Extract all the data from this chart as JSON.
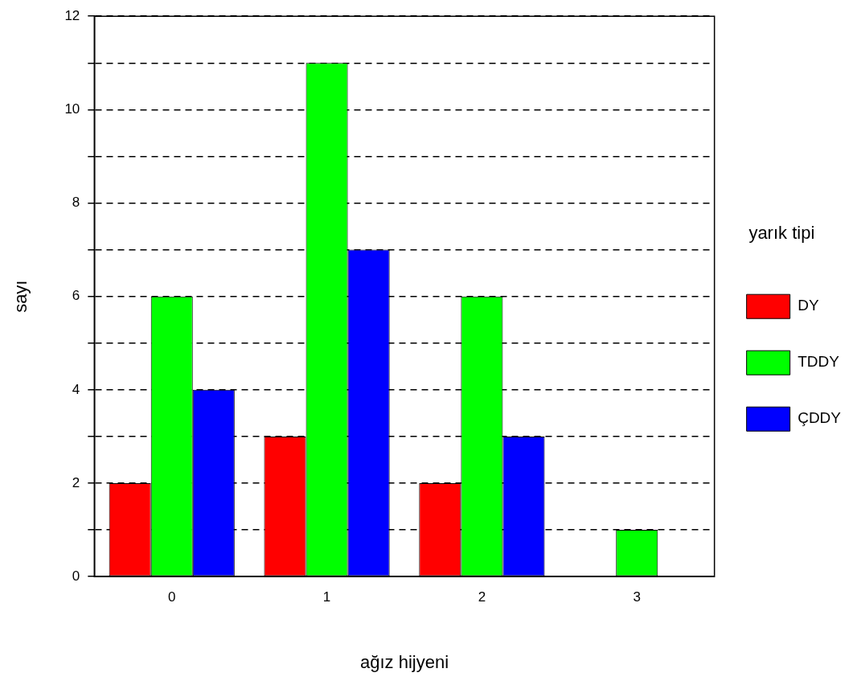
{
  "chart_data": {
    "type": "bar",
    "xlabel": "ağız hijyeni",
    "ylabel": "sayı",
    "legend_title": "yarık tipi",
    "categories": [
      "0",
      "1",
      "2",
      "3"
    ],
    "series": [
      {
        "name": "DY",
        "color": "#ff0000",
        "values": [
          2,
          3,
          2,
          0
        ]
      },
      {
        "name": "TDDY",
        "color": "#00ff00",
        "values": [
          6,
          11,
          6,
          1
        ]
      },
      {
        "name": "ÇDDY",
        "color": "#0000ff",
        "values": [
          4,
          7,
          3,
          0
        ]
      }
    ],
    "ylim": [
      0,
      12
    ],
    "yticks": [
      0,
      {
        "value": 1,
        "label": null
      },
      2,
      {
        "value": 3,
        "label": null
      },
      4,
      {
        "value": 5,
        "label": null
      },
      6,
      {
        "value": 7,
        "label": null
      },
      8,
      {
        "value": 9,
        "label": null
      },
      10,
      {
        "value": 11,
        "label": null
      },
      12
    ],
    "grid": "y",
    "legend": "right"
  }
}
